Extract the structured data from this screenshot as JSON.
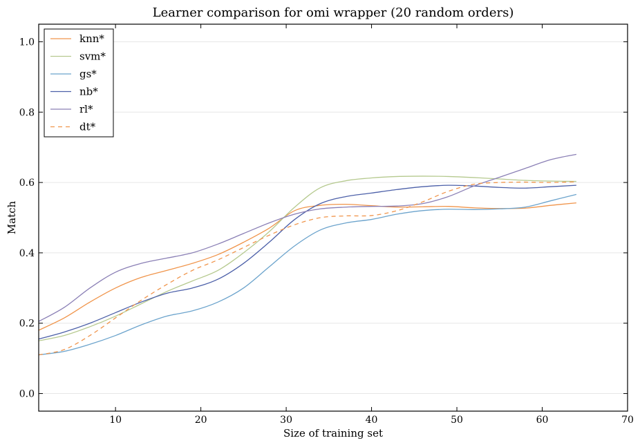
{
  "chart_data": {
    "type": "line",
    "title": "Learner comparison for omi wrapper (20 random orders)",
    "xlabel": "Size of training set",
    "ylabel": "Match",
    "xlim": [
      1,
      70
    ],
    "ylim": [
      -0.05,
      1.05
    ],
    "xticks": [
      10,
      20,
      30,
      40,
      50,
      60,
      70
    ],
    "yticks": [
      0.0,
      0.2,
      0.4,
      0.6,
      0.8,
      1.0
    ],
    "xtick_labels": [
      "10",
      "20",
      "30",
      "40",
      "50",
      "60",
      "70"
    ],
    "ytick_labels": [
      "0.0",
      "0.2",
      "0.4",
      "0.6",
      "0.8",
      "1.0"
    ],
    "grid": "horizontal",
    "legend_position": "top-left",
    "x": [
      1,
      4,
      7,
      10,
      13,
      16,
      19,
      22,
      25,
      28,
      31,
      34,
      37,
      40,
      43,
      46,
      49,
      52,
      55,
      58,
      61,
      64
    ],
    "series": [
      {
        "name": "knn*",
        "color": "#f0944a",
        "dash": "solid",
        "values": [
          0.18,
          0.215,
          0.26,
          0.3,
          0.33,
          0.35,
          0.37,
          0.395,
          0.43,
          0.47,
          0.52,
          0.535,
          0.538,
          0.534,
          0.53,
          0.531,
          0.532,
          0.528,
          0.526,
          0.527,
          0.535,
          0.542
        ]
      },
      {
        "name": "svm*",
        "color": "#b5c98e",
        "dash": "solid",
        "values": [
          0.15,
          0.165,
          0.19,
          0.22,
          0.255,
          0.29,
          0.32,
          0.35,
          0.4,
          0.46,
          0.53,
          0.585,
          0.605,
          0.613,
          0.617,
          0.618,
          0.617,
          0.614,
          0.61,
          0.606,
          0.604,
          0.603
        ]
      },
      {
        "name": "gs*",
        "color": "#6ba3cc",
        "dash": "solid",
        "values": [
          0.11,
          0.12,
          0.14,
          0.165,
          0.195,
          0.22,
          0.235,
          0.26,
          0.3,
          0.36,
          0.42,
          0.465,
          0.485,
          0.495,
          0.51,
          0.52,
          0.524,
          0.523,
          0.525,
          0.53,
          0.548,
          0.566
        ]
      },
      {
        "name": "nb*",
        "color": "#4b5fa8",
        "dash": "solid",
        "values": [
          0.155,
          0.175,
          0.2,
          0.23,
          0.26,
          0.285,
          0.3,
          0.325,
          0.37,
          0.43,
          0.495,
          0.54,
          0.56,
          0.57,
          0.58,
          0.588,
          0.592,
          0.59,
          0.586,
          0.584,
          0.588,
          0.592
        ]
      },
      {
        "name": "rl*",
        "color": "#8a7fb5",
        "dash": "solid",
        "values": [
          0.205,
          0.245,
          0.3,
          0.345,
          0.37,
          0.385,
          0.4,
          0.425,
          0.455,
          0.485,
          0.51,
          0.525,
          0.53,
          0.532,
          0.533,
          0.54,
          0.56,
          0.59,
          0.615,
          0.64,
          0.665,
          0.68
        ]
      },
      {
        "name": "dt*",
        "color": "#f0944a",
        "dash": "dashed",
        "values": [
          0.11,
          0.125,
          0.165,
          0.215,
          0.265,
          0.31,
          0.35,
          0.38,
          0.415,
          0.45,
          0.48,
          0.5,
          0.505,
          0.506,
          0.52,
          0.545,
          0.575,
          0.595,
          0.6,
          0.601,
          0.6,
          0.602
        ]
      }
    ]
  }
}
